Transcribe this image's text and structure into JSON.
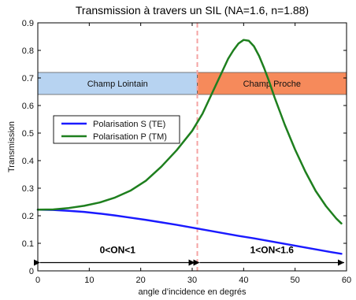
{
  "chart_data": {
    "type": "line",
    "title": "Transmission à travers un SIL (NA=1.6, n=1.88)",
    "xlabel": "angle d’incidence en degrés",
    "ylabel": "Transmission",
    "xlim": [
      0,
      60
    ],
    "ylim": [
      0,
      0.9
    ],
    "x_ticks": [
      "0",
      "10",
      "20",
      "30",
      "40",
      "50",
      "60"
    ],
    "y_ticks": [
      "0",
      "0.1",
      "0.2",
      "0.3",
      "0.4",
      "0.5",
      "0.6",
      "0.7",
      "0.8",
      "0.9"
    ],
    "grid": false,
    "legend_position": "left",
    "series": [
      {
        "name": "Polarisation S (TE)",
        "color": "#1a1aff",
        "x": [
          0,
          3,
          6,
          9,
          12,
          15,
          18,
          21,
          24,
          27,
          30,
          33,
          36,
          39,
          42,
          45,
          48,
          51,
          54,
          57,
          59
        ],
        "y": [
          0.222,
          0.221,
          0.218,
          0.214,
          0.208,
          0.201,
          0.193,
          0.185,
          0.176,
          0.167,
          0.157,
          0.147,
          0.137,
          0.127,
          0.118,
          0.108,
          0.098,
          0.088,
          0.078,
          0.068,
          0.062
        ]
      },
      {
        "name": "Polarisation P (TM)",
        "color": "#1e7f1e",
        "x": [
          0,
          3,
          6,
          9,
          12,
          15,
          18,
          21,
          24,
          27,
          30,
          32,
          34,
          36,
          37,
          38,
          39,
          40,
          41,
          42,
          43,
          44,
          45,
          46,
          47,
          48,
          50,
          52,
          54,
          56,
          58,
          59
        ],
        "y": [
          0.222,
          0.223,
          0.228,
          0.236,
          0.248,
          0.266,
          0.291,
          0.327,
          0.378,
          0.438,
          0.508,
          0.57,
          0.65,
          0.73,
          0.77,
          0.8,
          0.825,
          0.838,
          0.835,
          0.815,
          0.78,
          0.735,
          0.685,
          0.63,
          0.58,
          0.53,
          0.44,
          0.36,
          0.29,
          0.235,
          0.19,
          0.172
        ]
      }
    ],
    "critical_angle": 31,
    "regions": [
      {
        "label": "Champ Lointain",
        "x_range": [
          0,
          31
        ],
        "y_range": [
          0.64,
          0.72
        ],
        "color": "#b7d3f1"
      },
      {
        "label": "Champ Proche",
        "x_range": [
          31,
          60
        ],
        "y_range": [
          0.64,
          0.72
        ],
        "color": "#f68a5b"
      }
    ],
    "ranges": [
      {
        "label": "0<ON<1",
        "x_range": [
          0,
          31
        ],
        "y": 0.03
      },
      {
        "label": "1<ON<1.6",
        "x_range": [
          31,
          60
        ],
        "y": 0.03
      }
    ]
  },
  "colors": {
    "te": "#1a1aff",
    "tm": "#1e7f1e",
    "critical_line": "#f4a3a3"
  }
}
